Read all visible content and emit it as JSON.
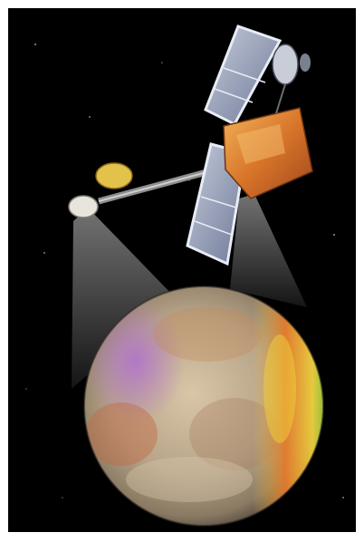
{
  "image": {
    "subject_icons": [
      "spacecraft-icon",
      "planet-icon"
    ],
    "colors": {
      "background": "#000000",
      "border": "#ffffff",
      "panel": "#9aa3b8",
      "body_gold": "#d88a2e",
      "planet_base": "#b8a489"
    }
  }
}
